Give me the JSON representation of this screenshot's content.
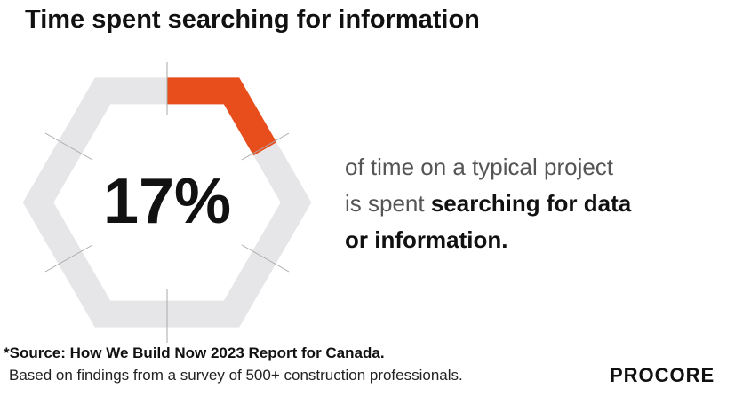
{
  "chart_data": {
    "type": "hexagon-gauge",
    "title": "Time spent searching for information",
    "value": 17,
    "value_label": "17%",
    "range": [
      0,
      100
    ],
    "track_color": "#e6e6e8",
    "color": "#e84e1b",
    "description_lines": [
      "of time on a typical project",
      "is spent"
    ],
    "bold_lines": [
      "searching for data",
      "or information."
    ],
    "source": "*Source: How We Build Now 2023 Report for Canada.",
    "note": "Based on findings from a survey of 500+ construction professionals.",
    "brand": "PROCORE"
  }
}
